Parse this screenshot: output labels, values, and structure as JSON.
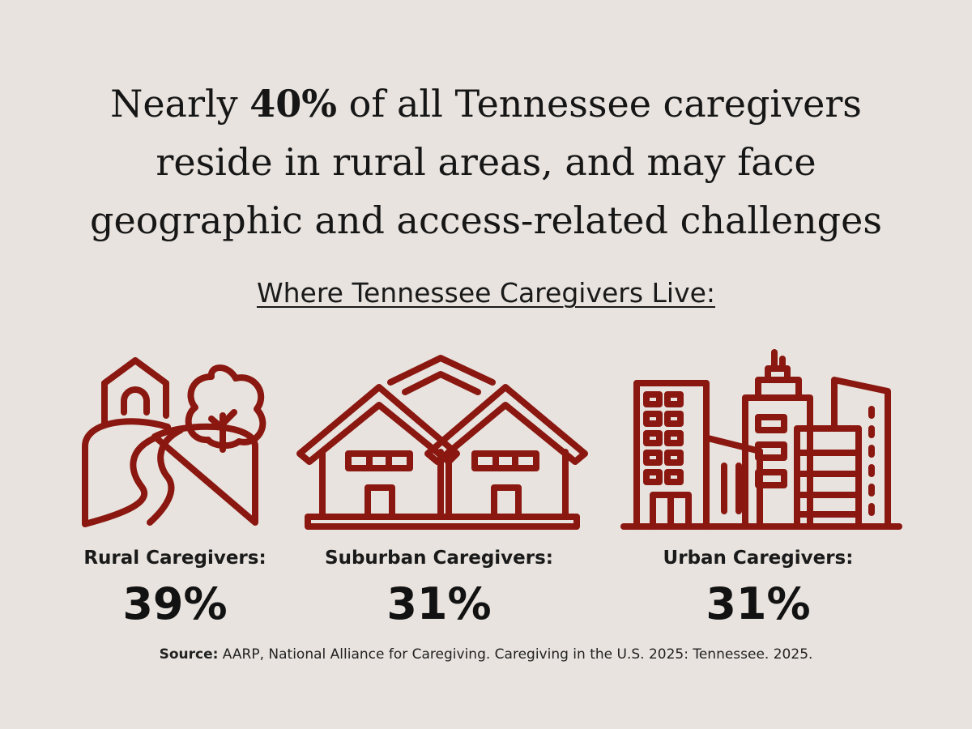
{
  "headline": {
    "line1_pre": "Nearly ",
    "line1_emphasis": "40%",
    "line1_post": " of all Tennessee caregivers",
    "line2": "reside in rural areas, and may face",
    "line3": "geographic and access-related challenges"
  },
  "subheading": "Where Tennessee Caregivers Live:",
  "categories": [
    {
      "label": "Rural Caregivers:",
      "value": "39%",
      "icon": "rural-landscape-icon"
    },
    {
      "label": "Suburban Caregivers:",
      "value": "31%",
      "icon": "suburban-houses-icon"
    },
    {
      "label": "Urban Caregivers:",
      "value": "31%",
      "icon": "city-buildings-icon"
    }
  ],
  "source": {
    "label": "Source:",
    "text": " AARP, National Alliance for Caregiving. Caregiving in the U.S. 2025: Tennessee. 2025."
  },
  "colors": {
    "background": "#e8e3de",
    "icon_accent": "#8a1710",
    "text": "#141414"
  }
}
